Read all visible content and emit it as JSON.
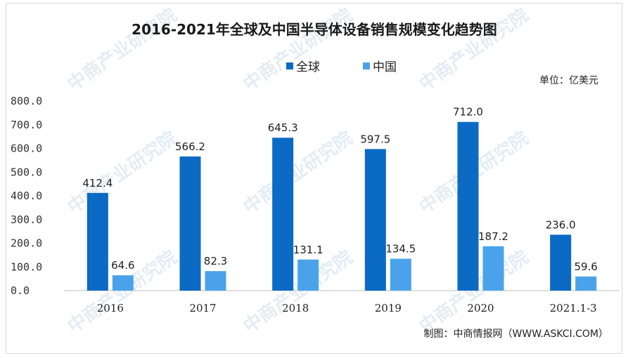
{
  "chart_data": {
    "type": "bar",
    "title": "2016-2021年全球及中国半导体设备销售规模变化趋势图",
    "unit": "单位：亿美元",
    "categories": [
      "2016",
      "2017",
      "2018",
      "2019",
      "2020",
      "2021.1-3"
    ],
    "series": [
      {
        "name": "全球",
        "values": [
          412.4,
          566.2,
          645.3,
          597.5,
          712.0,
          236.0
        ],
        "labels": [
          "412.4",
          "566.2",
          "645.3",
          "597.5",
          "712.0",
          "236.0"
        ],
        "color": "#0a6ac4"
      },
      {
        "name": "中国",
        "values": [
          64.6,
          82.3,
          131.1,
          134.5,
          187.2,
          59.6
        ],
        "labels": [
          "64.6",
          "82.3",
          "131.1",
          "134.5",
          "187.2",
          "59.6"
        ],
        "color": "#4aa3ea"
      }
    ],
    "yticks": [
      "0.0",
      "100.0",
      "200.0",
      "300.0",
      "400.0",
      "500.0",
      "600.0",
      "700.0",
      "800.0"
    ],
    "ylim": [
      0,
      800
    ],
    "legend_position": "top-center",
    "grid": false
  },
  "source": "制图：中商情报网（WWW.ASKCI.COM）",
  "watermark": "中商产业研究院"
}
